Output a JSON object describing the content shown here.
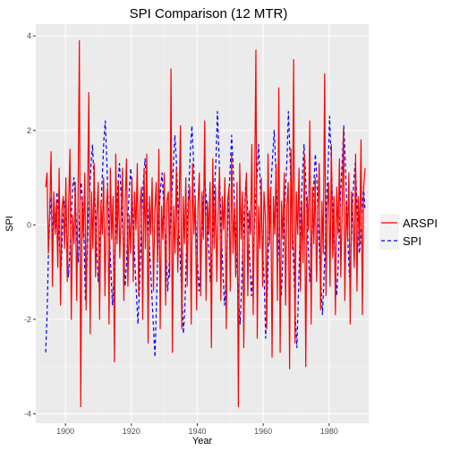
{
  "chart_data": {
    "type": "line",
    "title": "SPI Comparison (12 MTR)",
    "xlabel": "Year",
    "ylabel": "SPI",
    "xlim": [
      1891,
      1992
    ],
    "ylim": [
      -4.2,
      4.25
    ],
    "x_ticks": [
      1900,
      1920,
      1940,
      1960,
      1980
    ],
    "y_ticks": [
      -4,
      -2,
      0,
      2,
      4
    ],
    "grid": true,
    "legend_position": "right",
    "x_start": 1894,
    "x_end": 1990.9,
    "series": [
      {
        "name": "ARSPI",
        "color": "#ff0000",
        "dash": "solid",
        "values": [
          0.8,
          1.1,
          -0.6,
          0.3,
          1.55,
          -1.3,
          0.7,
          -0.2,
          0.5,
          -0.9,
          1.2,
          -1.7,
          0.3,
          0.6,
          -0.5,
          1.0,
          -1.2,
          0.4,
          1.6,
          -2.0,
          0.2,
          -0.4,
          0.9,
          -1.6,
          0.5,
          3.9,
          -3.85,
          0.6,
          -0.3,
          1.1,
          -1.8,
          0.4,
          2.8,
          -2.3,
          0.7,
          -0.5,
          1.3,
          -1.1,
          0.2,
          0.9,
          -2.0,
          0.5,
          -0.2,
          1.0,
          -1.5,
          0.4,
          0.8,
          -2.1,
          1.2,
          -0.3,
          0.6,
          -2.9,
          1.5,
          -0.4,
          0.9,
          -0.7,
          0.3,
          1.2,
          -1.6,
          0.5,
          1.4,
          -1.3,
          0.2,
          -0.6,
          1.0,
          -1.2,
          0.7,
          -0.1,
          1.3,
          -1.5,
          0.4,
          0.8,
          -2.0,
          1.2,
          -0.5,
          1.5,
          -2.5,
          0.6,
          -0.2,
          1.0,
          -1.4,
          0.3,
          0.9,
          -0.8,
          1.6,
          -2.2,
          0.4,
          -0.3,
          1.1,
          -1.7,
          0.5,
          0.7,
          -1.1,
          3.3,
          -2.7,
          0.4,
          -0.6,
          1.2,
          -1.0,
          0.3,
          2.1,
          -2.2,
          0.6,
          -0.4,
          1.0,
          -1.3,
          0.5,
          0.8,
          -2.1,
          1.3,
          -0.2,
          0.6,
          -1.8,
          0.4,
          1.1,
          -1.5,
          0.7,
          -0.3,
          2.2,
          -1.6,
          0.5,
          -0.2,
          0.9,
          -2.6,
          1.4,
          -0.5,
          0.8,
          -1.2,
          0.3,
          1.2,
          -1.6,
          0.6,
          -0.1,
          1.0,
          -2.2,
          0.5,
          0.8,
          -1.4,
          1.5,
          -0.6,
          0.4,
          -1.1,
          0.9,
          -3.85,
          1.3,
          -0.3,
          0.7,
          -2.6,
          0.5,
          1.1,
          -1.5,
          0.3,
          -0.2,
          1.7,
          -1.9,
          0.6,
          3.7,
          -2.4,
          0.4,
          -0.5,
          1.0,
          -1.3,
          0.7,
          0.2,
          -2.2,
          1.5,
          -0.4,
          0.8,
          -2.8,
          0.6,
          -0.2,
          1.3,
          -1.6,
          2.9,
          -2.7,
          0.5,
          -0.3,
          1.1,
          -1.7,
          0.4,
          0.9,
          -3.05,
          1.6,
          -0.5,
          3.5,
          -2.5,
          0.7,
          -0.2,
          1.2,
          -1.4,
          0.5,
          -0.8,
          1.5,
          -3.0,
          0.6,
          -0.1,
          2.2,
          -2.1,
          0.8,
          -0.4,
          1.0,
          -1.2,
          0.3,
          1.3,
          -1.8,
          0.5,
          -0.6,
          3.2,
          -1.5,
          0.4,
          0.9,
          -1.3,
          1.7,
          -0.7,
          0.6,
          -1.9,
          0.8,
          -0.2,
          1.4,
          -1.1,
          0.3,
          2.0,
          -1.6,
          0.5,
          -0.3,
          1.1,
          -2.1,
          0.7,
          0.2,
          -0.9,
          1.5,
          -1.4,
          0.6,
          -0.4,
          1.8,
          -1.9,
          0.8,
          1.2
        ]
      },
      {
        "name": "SPI",
        "color": "#0000ff",
        "dash": "dashed",
        "values": [
          -2.7,
          -1.9,
          -0.5,
          0.2,
          0.6,
          -0.3,
          0.4,
          -0.1,
          0.7,
          0.2,
          -0.6,
          -0.9,
          0.1,
          0.5,
          0.3,
          -0.4,
          -1.1,
          -0.6,
          0.2,
          0.8,
          1.0,
          0.4,
          -0.2,
          -0.8,
          0.3,
          0.9,
          0.5,
          -0.3,
          -1.6,
          -0.9,
          0.2,
          0.7,
          1.3,
          1.7,
          1.0,
          0.3,
          -0.5,
          -1.2,
          -0.6,
          0.4,
          1.1,
          1.8,
          2.2,
          1.4,
          0.5,
          -0.3,
          -1.0,
          -1.7,
          -1.1,
          -0.4,
          0.3,
          0.9,
          1.3,
          0.7,
          0.1,
          -0.6,
          -1.3,
          -0.8,
          0.2,
          0.8,
          1.2,
          0.6,
          -0.2,
          -0.9,
          -1.5,
          -2.1,
          -1.4,
          -0.5,
          0.4,
          1.0,
          1.4,
          0.9,
          0.2,
          -0.4,
          -1.0,
          -1.6,
          -2.2,
          -2.8,
          -1.7,
          -0.6,
          0.3,
          0.8,
          1.1,
          0.5,
          -0.1,
          -0.7,
          -1.4,
          -0.8,
          0.1,
          0.7,
          1.3,
          1.9,
          1.4,
          0.6,
          -0.2,
          -0.9,
          -1.5,
          -2.3,
          -1.8,
          -0.7,
          0.2,
          0.9,
          1.6,
          2.1,
          1.5,
          0.7,
          -0.1,
          -0.8,
          -1.4,
          -1.0,
          -0.2,
          0.5,
          1.0,
          0.6,
          -0.1,
          -0.6,
          -1.2,
          -0.7,
          0.1,
          0.8,
          1.4,
          2.4,
          1.6,
          0.5,
          -0.4,
          -1.1,
          -1.7,
          -1.2,
          -0.3,
          0.6,
          1.2,
          1.9,
          1.3,
          0.4,
          -0.5,
          -1.0,
          -1.6,
          -2.1,
          -1.3,
          -0.4,
          0.3,
          0.9,
          0.5,
          -0.2,
          -0.9,
          -1.5,
          -0.9,
          -0.1,
          0.6,
          1.1,
          1.7,
          1.0,
          0.2,
          -0.6,
          -1.2,
          -2.4,
          -1.6,
          -0.5,
          0.4,
          1.0,
          1.5,
          2.0,
          1.3,
          0.5,
          -0.3,
          -1.0,
          -1.5,
          -0.8,
          0.1,
          0.8,
          1.4,
          2.4,
          1.6,
          0.6,
          -0.3,
          -1.1,
          -2.0,
          -2.6,
          -1.5,
          -0.4,
          0.5,
          1.1,
          1.7,
          1.1,
          0.3,
          -0.5,
          -1.2,
          -0.7,
          0.2,
          0.9,
          1.5,
          1.0,
          0.1,
          -0.7,
          -1.3,
          -1.9,
          -1.2,
          -0.3,
          0.6,
          1.2,
          2.3,
          1.5,
          0.6,
          -0.2,
          -0.9,
          -1.5,
          -0.9,
          0.0,
          0.8,
          1.4,
          2.1,
          1.4,
          0.5,
          -0.4,
          -1.1,
          -0.6,
          0.3,
          0.9,
          1.3,
          0.7,
          -0.1,
          -0.6,
          -0.3,
          0.4,
          0.8,
          0.3
        ]
      }
    ]
  }
}
